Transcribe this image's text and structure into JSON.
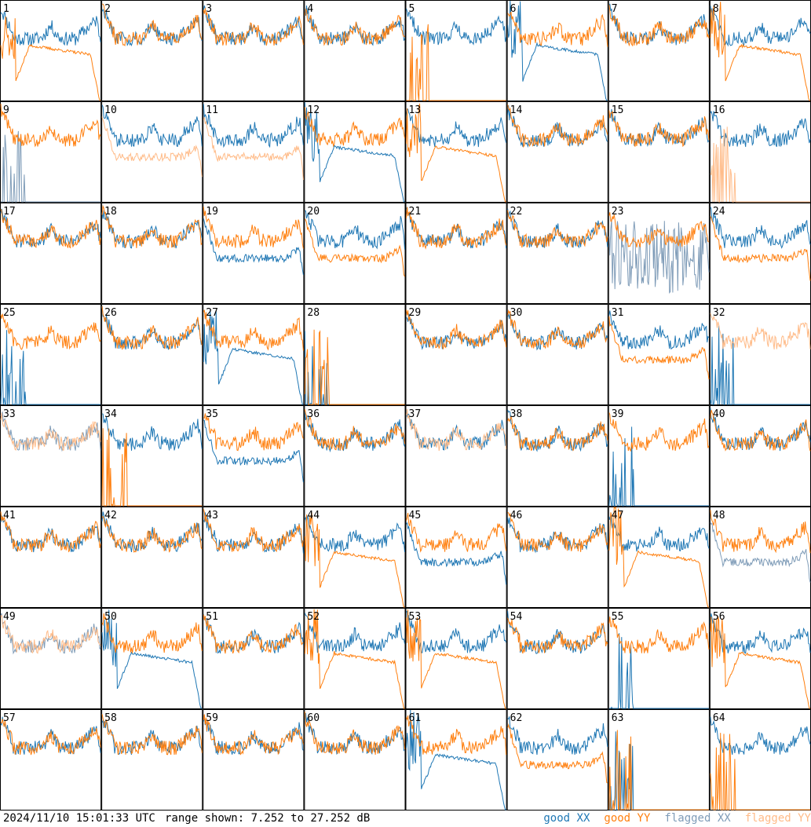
{
  "chart_data": {
    "type": "line",
    "panel_labels": [
      "1",
      "2",
      "3",
      "4",
      "5",
      "6",
      "7",
      "8",
      "9",
      "10",
      "11",
      "12",
      "13",
      "14",
      "15",
      "16",
      "17",
      "18",
      "19",
      "20",
      "21",
      "22",
      "23",
      "24",
      "25",
      "26",
      "27",
      "28",
      "29",
      "30",
      "31",
      "32",
      "33",
      "34",
      "35",
      "36",
      "37",
      "38",
      "39",
      "40",
      "41",
      "42",
      "43",
      "44",
      "45",
      "46",
      "47",
      "48",
      "49",
      "50",
      "51",
      "52",
      "53",
      "54",
      "55",
      "56",
      "57",
      "58",
      "59",
      "60",
      "61",
      "62",
      "63",
      "64"
    ],
    "range_db": [
      7.252,
      27.252
    ],
    "legend": [
      {
        "label": "good XX",
        "color": "#1f77b4"
      },
      {
        "label": "good YY",
        "color": "#ff7f0e"
      },
      {
        "label": "flagged XX",
        "color": "#7f9cb8"
      },
      {
        "label": "flagged YY",
        "color": "#ffbb88"
      }
    ],
    "panels": [
      {
        "xx": "good",
        "yy": "dip",
        "yyFlag": false,
        "xxFlag": false
      },
      {
        "xx": "good",
        "yy": "good"
      },
      {
        "xx": "good",
        "yy": "good"
      },
      {
        "xx": "good",
        "yy": "good"
      },
      {
        "xx": "good",
        "yy": "dead"
      },
      {
        "xx": "dip",
        "yy": "good"
      },
      {
        "xx": "good",
        "yy": "good"
      },
      {
        "xx": "good",
        "yy": "dip"
      },
      {
        "xx": "dead",
        "yy": "good",
        "xxFlag": true
      },
      {
        "xx": "good",
        "yy": "low",
        "yyFlag": true
      },
      {
        "xx": "good",
        "yy": "low",
        "yyFlag": true
      },
      {
        "xx": "dip",
        "yy": "good"
      },
      {
        "xx": "good",
        "yy": "dip"
      },
      {
        "xx": "good",
        "yy": "good"
      },
      {
        "xx": "good",
        "yy": "good"
      },
      {
        "xx": "good",
        "yy": "dead",
        "yyFlag": true
      },
      {
        "xx": "good",
        "yy": "good"
      },
      {
        "xx": "good",
        "yy": "good"
      },
      {
        "xx": "low",
        "yy": "good"
      },
      {
        "xx": "good",
        "yy": "low"
      },
      {
        "xx": "good",
        "yy": "good"
      },
      {
        "xx": "good",
        "yy": "good"
      },
      {
        "xx": "noise",
        "yy": "good",
        "xxFlag": true
      },
      {
        "xx": "good",
        "yy": "low"
      },
      {
        "xx": "dead",
        "yy": "good"
      },
      {
        "xx": "good",
        "yy": "good"
      },
      {
        "xx": "dip",
        "yy": "good"
      },
      {
        "xx": "dead",
        "yy": "dead"
      },
      {
        "xx": "good",
        "yy": "good"
      },
      {
        "xx": "good",
        "yy": "good"
      },
      {
        "xx": "good",
        "yy": "low"
      },
      {
        "xx": "dead",
        "yy": "good",
        "yyFlag": true
      },
      {
        "xx": "good",
        "yy": "good",
        "xxFlag": true,
        "yyFlag": true
      },
      {
        "xx": "good",
        "yy": "dead"
      },
      {
        "xx": "low",
        "yy": "good"
      },
      {
        "xx": "good",
        "yy": "good"
      },
      {
        "xx": "good",
        "yy": "good",
        "yyFlag": true
      },
      {
        "xx": "good",
        "yy": "good"
      },
      {
        "xx": "dead",
        "yy": "good"
      },
      {
        "xx": "good",
        "yy": "good"
      },
      {
        "xx": "good",
        "yy": "good"
      },
      {
        "xx": "good",
        "yy": "good"
      },
      {
        "xx": "good",
        "yy": "good"
      },
      {
        "xx": "good",
        "yy": "dip"
      },
      {
        "xx": "low",
        "yy": "good"
      },
      {
        "xx": "good",
        "yy": "good"
      },
      {
        "xx": "good",
        "yy": "dip"
      },
      {
        "xx": "low",
        "yy": "good",
        "xxFlag": true
      },
      {
        "xx": "good",
        "yy": "good",
        "xxFlag": true,
        "yyFlag": true
      },
      {
        "xx": "dip",
        "yy": "good"
      },
      {
        "xx": "good",
        "yy": "good"
      },
      {
        "xx": "good",
        "yy": "dip"
      },
      {
        "xx": "good",
        "yy": "dip"
      },
      {
        "xx": "good",
        "yy": "good"
      },
      {
        "xx": "dead",
        "yy": "good"
      },
      {
        "xx": "good",
        "yy": "dip"
      },
      {
        "xx": "good",
        "yy": "good"
      },
      {
        "xx": "good",
        "yy": "good"
      },
      {
        "xx": "good",
        "yy": "good"
      },
      {
        "xx": "good",
        "yy": "good"
      },
      {
        "xx": "dip",
        "yy": "good"
      },
      {
        "xx": "good",
        "yy": "low"
      },
      {
        "xx": "dead",
        "yy": "dead"
      },
      {
        "xx": "good",
        "yy": "dead"
      }
    ]
  },
  "footer": {
    "timestamp": "2024/11/10 15:01:33 UTC",
    "range_text": "range shown: 7.252 to 27.252 dB"
  }
}
